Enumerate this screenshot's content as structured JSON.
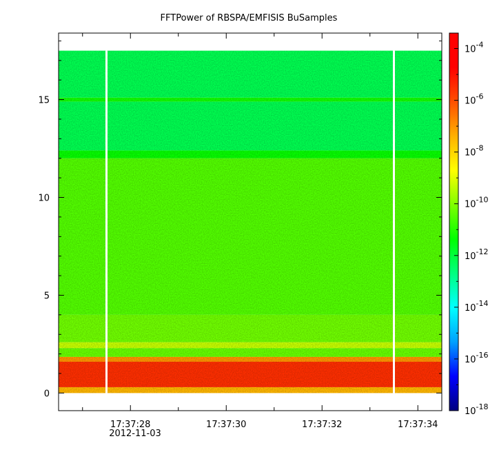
{
  "chart_data": {
    "type": "heatmap",
    "title": "FFTPower of RBSPA/EMFISIS  BuSamples",
    "xlabel": "",
    "ylabel": "",
    "x_ticks": [
      "17:37:28",
      "17:37:30",
      "17:37:32",
      "17:37:34"
    ],
    "x_tick_values_s": [
      28,
      30,
      32,
      34
    ],
    "x_date_label": "2012-11-03",
    "xlim_s": [
      26.5,
      34.5
    ],
    "y_ticks": [
      0,
      5,
      10,
      15
    ],
    "y_tick_labels": [
      "0",
      "5",
      "10",
      "15"
    ],
    "ylim": [
      -0.9,
      18.4
    ],
    "data_y_range": [
      0,
      17.5
    ],
    "gaps_s": [
      27.5,
      33.5
    ],
    "bands": [
      {
        "y0": 0.0,
        "y1": 0.3,
        "log_power": -7.5
      },
      {
        "y0": 0.3,
        "y1": 1.6,
        "log_power": -5.5
      },
      {
        "y0": 1.6,
        "y1": 1.85,
        "log_power": -7.0
      },
      {
        "y0": 1.85,
        "y1": 2.3,
        "log_power": -10.3
      },
      {
        "y0": 2.3,
        "y1": 2.6,
        "log_power": -9.3
      },
      {
        "y0": 2.6,
        "y1": 4.0,
        "log_power": -10.2
      },
      {
        "y0": 4.0,
        "y1": 12.0,
        "log_power": -10.5
      },
      {
        "y0": 12.0,
        "y1": 12.4,
        "log_power": -11.3
      },
      {
        "y0": 12.4,
        "y1": 14.9,
        "log_power": -12.2
      },
      {
        "y0": 14.9,
        "y1": 15.1,
        "log_power": -11.2
      },
      {
        "y0": 15.1,
        "y1": 17.5,
        "log_power": -12.2
      }
    ],
    "colorbar": {
      "scale": "log",
      "min_exp": -18,
      "max_exp": -3.4,
      "tick_exponents": [
        -4,
        -6,
        -8,
        -10,
        -12,
        -14,
        -16,
        -18
      ],
      "tick_labels": [
        "10-4",
        "10-6",
        "10-8",
        "10-10",
        "10-12",
        "10-14",
        "10-16",
        "10-18"
      ],
      "colormap": [
        "#000080",
        "#0000ff",
        "#00a0ff",
        "#00ffff",
        "#00ff80",
        "#00ff00",
        "#80ff00",
        "#ffff00",
        "#ffb000",
        "#ff5000",
        "#ff0000",
        "#ff0000"
      ]
    }
  }
}
